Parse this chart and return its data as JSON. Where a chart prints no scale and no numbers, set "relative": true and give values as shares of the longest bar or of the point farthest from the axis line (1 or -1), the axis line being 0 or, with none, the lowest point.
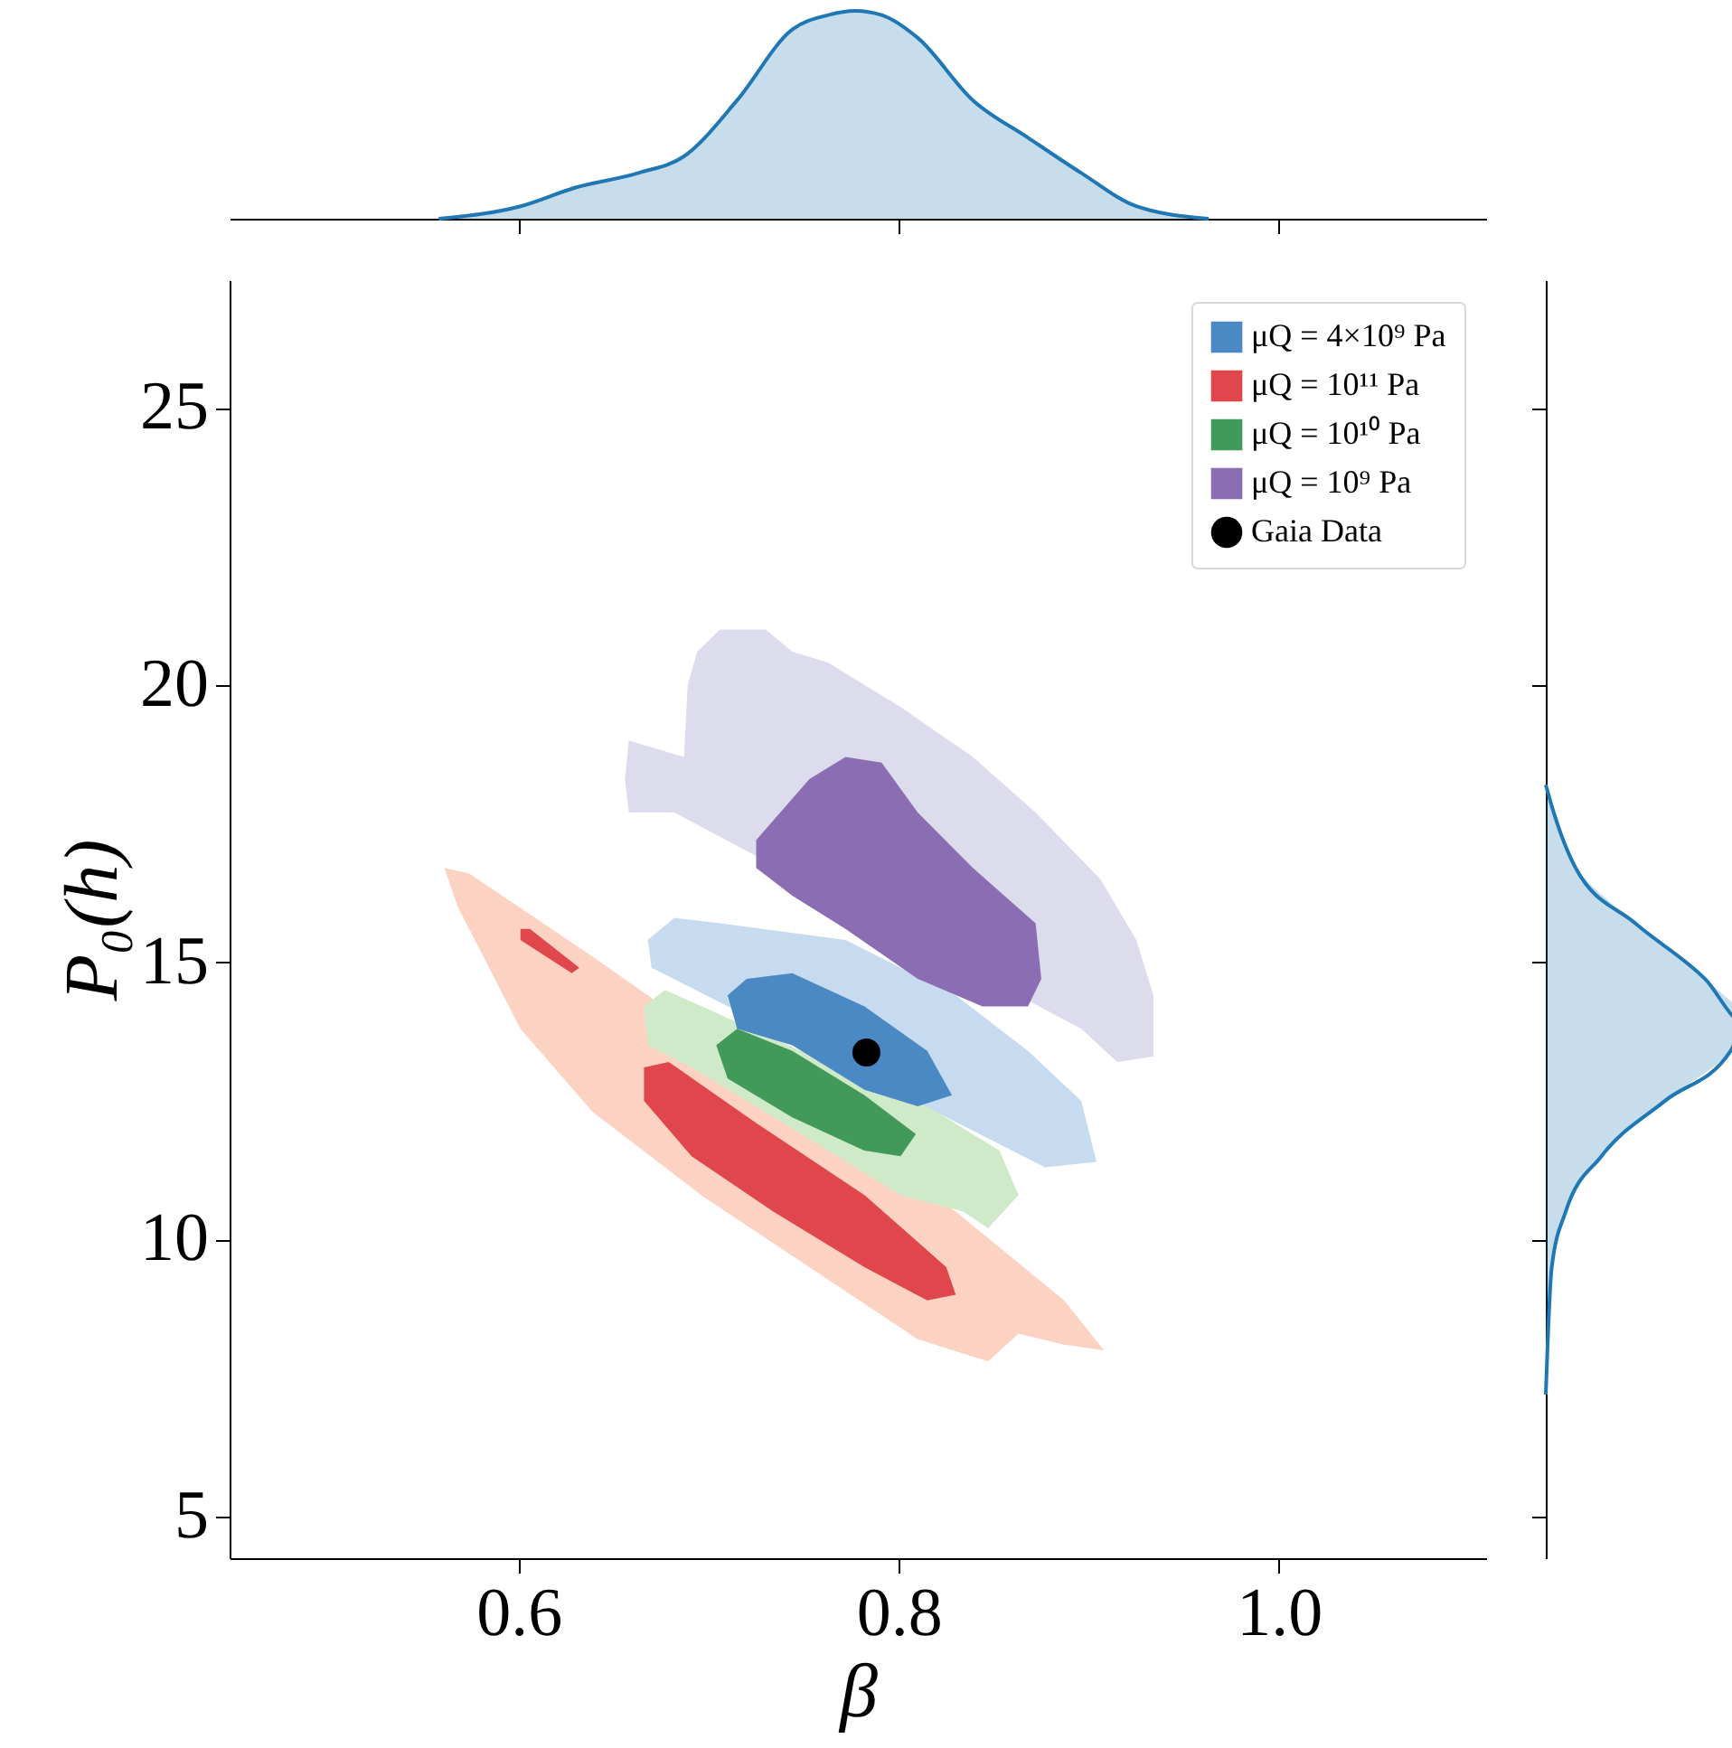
{
  "chart_data": [
    {
      "type": "area",
      "relative": true,
      "xlim": [
        0.448,
        1.109
      ],
      "xticks": [
        {
          "value": 0.6,
          "label": null
        },
        {
          "value": 0.8,
          "label": null
        },
        {
          "value": 1.0,
          "label": null
        }
      ],
      "tick_labels": false,
      "series": [
        {
          "color": "#1f77b4",
          "x": [
            0.558,
            0.601,
            0.63,
            0.663,
            0.687,
            0.715,
            0.744,
            0.763,
            0.777,
            0.791,
            0.81,
            0.839,
            0.868,
            0.896,
            0.925,
            0.963
          ],
          "values": [
            0,
            0.06,
            0.15,
            0.22,
            0.3,
            0.57,
            0.91,
            0.98,
            1,
            0.98,
            0.87,
            0.57,
            0.39,
            0.22,
            0.06,
            0
          ]
        }
      ]
    },
    {
      "type": "area",
      "xlabel": "β",
      "ylabel": "P₀(h)",
      "xlim": [
        0.448,
        1.109
      ],
      "ylim": [
        4.25,
        27.3
      ],
      "xticks": [
        0.6,
        0.8,
        {
          "value": 1.0,
          "label": "1.0"
        }
      ],
      "yticks": [
        5,
        10,
        15,
        20,
        25
      ],
      "legend": "top right",
      "series": [
        {
          "color": "#dcdcec",
          "x": [
            0.656,
            0.658,
            0.687,
            0.689,
            0.694,
            0.706,
            0.73,
            0.744,
            0.763,
            0.801,
            0.839,
            0.872,
            0.906,
            0.925,
            0.934,
            0.934,
            0.915,
            0.896,
            0.858,
            0.83,
            0.782,
            0.725,
            0.682,
            0.658
          ],
          "values": [
            18.3,
            19.0,
            18.7,
            20.0,
            20.6,
            21.0,
            21.0,
            20.6,
            20.4,
            19.6,
            18.7,
            17.7,
            16.5,
            15.4,
            14.4,
            13.3,
            13.2,
            13.8,
            null,
            null,
            null,
            null,
            17.7,
            17.7
          ]
        },
        {
          "color": "#fcd2c2",
          "x": [
            0.561,
            0.574,
            0.639,
            0.706,
            0.772,
            0.83,
            0.887,
            0.908,
            0.887,
            0.863,
            0.847,
            0.81,
            0.753,
            0.696,
            0.639,
            0.601,
            0.568
          ],
          "values": [
            16.7,
            16.6,
            15.1,
            null,
            null,
            10.5,
            8.9,
            8.0,
            8.1,
            8.3,
            7.8,
            8.2,
            9.5,
            10.8,
            12.3,
            13.8,
            16.0
          ]
        },
        {
          "color": "#e0474c",
          "x": [
            0.601,
            0.606,
            0.632,
            0.628,
            0.601
          ],
          "values": [
            15.6,
            15.6,
            14.9,
            14.8,
            15.4
          ]
        },
        {
          "color": "#c6dbef",
          "x": [
            0.668,
            0.682,
            0.706,
            0.772,
            0.83,
            0.868,
            0.896,
            0.904,
            0.877,
            0.853,
            0.83,
            0.782,
            0.725,
            0.687,
            0.677,
            0.67
          ],
          "values": [
            15.4,
            15.8,
            15.7,
            15.4,
            14.4,
            13.4,
            12.5,
            11.4,
            11.3,
            null,
            null,
            null,
            null,
            null,
            null,
            14.9
          ]
        },
        {
          "color": "#cfeac8",
          "x": [
            0.666,
            0.677,
            0.715,
            0.763,
            0.82,
            0.853,
            0.863,
            0.847,
            0.834,
            0.801,
            0.744,
            0.691,
            0.668
          ],
          "values": [
            14.2,
            14.5,
            null,
            null,
            12.3,
            11.6,
            10.8,
            10.2,
            10.5,
            10.8,
            12.0,
            13.1,
            13.5
          ]
        },
        {
          "name": "μQ = 4×10⁹ Pa",
          "color": "#4a89c4",
          "x": [
            0.71,
            0.72,
            0.744,
            0.782,
            0.815,
            0.828,
            0.81,
            0.782,
            0.744,
            0.715
          ],
          "values": [
            14.4,
            14.7,
            14.8,
            14.2,
            13.4,
            12.6,
            12.4,
            12.7,
            13.5,
            13.8
          ]
        },
        {
          "name": "μQ = 10¹¹ Pa",
          "color": "#e0474c",
          "x": [
            0.666,
            0.679,
            0.725,
            0.782,
            0.825,
            0.83,
            0.815,
            0.782,
            0.734,
            0.691,
            0.666
          ],
          "values": [
            13.1,
            13.2,
            12.1,
            10.8,
            9.5,
            9.0,
            8.9,
            9.5,
            10.5,
            11.5,
            12.5
          ]
        },
        {
          "name": "μQ = 10¹⁰ Pa",
          "color": "#41995a",
          "x": [
            0.704,
            0.715,
            0.744,
            0.782,
            0.809,
            0.801,
            0.782,
            0.744,
            0.71
          ],
          "values": [
            13.5,
            13.8,
            13.4,
            12.6,
            11.9,
            11.5,
            11.6,
            12.2,
            12.9
          ]
        },
        {
          "name": "μQ = 10⁹ Pa",
          "color": "#8b6db3",
          "x": [
            0.725,
            0.753,
            0.772,
            0.791,
            0.81,
            0.839,
            0.872,
            0.875,
            0.868,
            0.844,
            0.81,
            0.772,
            0.744,
            0.725
          ],
          "values": [
            17.2,
            18.3,
            18.7,
            18.6,
            17.7,
            16.7,
            15.7,
            14.7,
            14.2,
            14.2,
            14.7,
            15.6,
            16.2,
            16.7
          ]
        },
        {
          "type": "scatter",
          "name": "Gaia Data",
          "color": "#000000",
          "x": [
            0.783
          ],
          "values": [
            13.37
          ]
        }
      ]
    },
    {
      "type": "area",
      "orientation": "horizontal",
      "relative": true,
      "ylim": [
        4.25,
        27.3
      ],
      "yticks": [
        {
          "value": 5,
          "label": null
        },
        {
          "value": 10,
          "label": null
        },
        {
          "value": 15,
          "label": null
        },
        {
          "value": 20,
          "label": null
        },
        {
          "value": 25,
          "label": null
        }
      ],
      "tick_labels": false,
      "series": [
        {
          "color": "#1f77b4",
          "x": [
            7.2,
            9.5,
            10.5,
            11.5,
            12.5,
            13.4,
            13.9,
            14.7,
            15.7,
            16.7,
            17.7,
            18.2
          ],
          "values": [
            0,
            0.03,
            0.1,
            0.28,
            0.6,
            0.93,
            1,
            0.8,
            0.45,
            0.15,
            0.04,
            0
          ]
        }
      ]
    }
  ]
}
